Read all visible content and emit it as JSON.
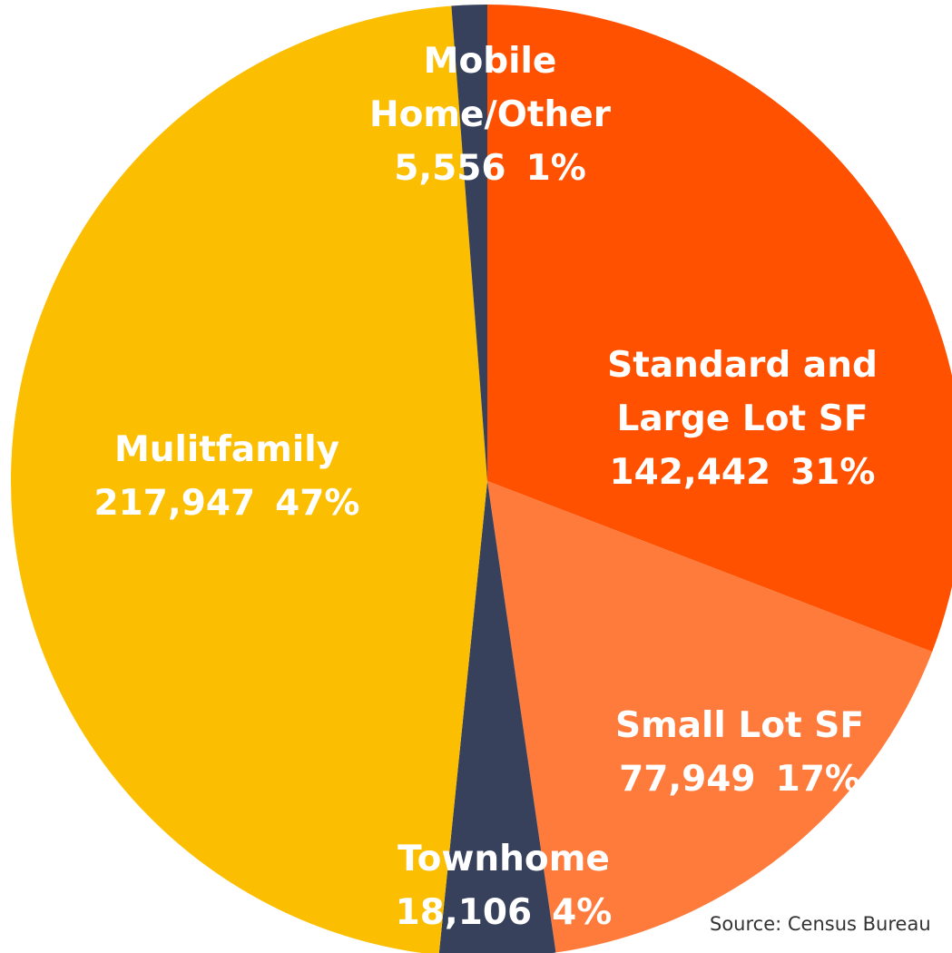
{
  "chart_data": {
    "type": "pie",
    "categories": [
      "Standard and Large Lot SF",
      "Small Lot SF",
      "Townhome",
      "Mulitfamily",
      "Mobile Home/Other"
    ],
    "values": [
      142442,
      77949,
      18106,
      217947,
      5556
    ],
    "value_labels": [
      "142,442",
      "77,949",
      "18,106",
      "217,947",
      "5,556"
    ],
    "percent_labels": [
      "31%",
      "17%",
      "4%",
      "47%",
      "1%"
    ],
    "colors": [
      "#ff5100",
      "#ff7b3c",
      "#37415c",
      "#fcbe00",
      "#37415c"
    ],
    "source": "Source: Census Bureau"
  }
}
